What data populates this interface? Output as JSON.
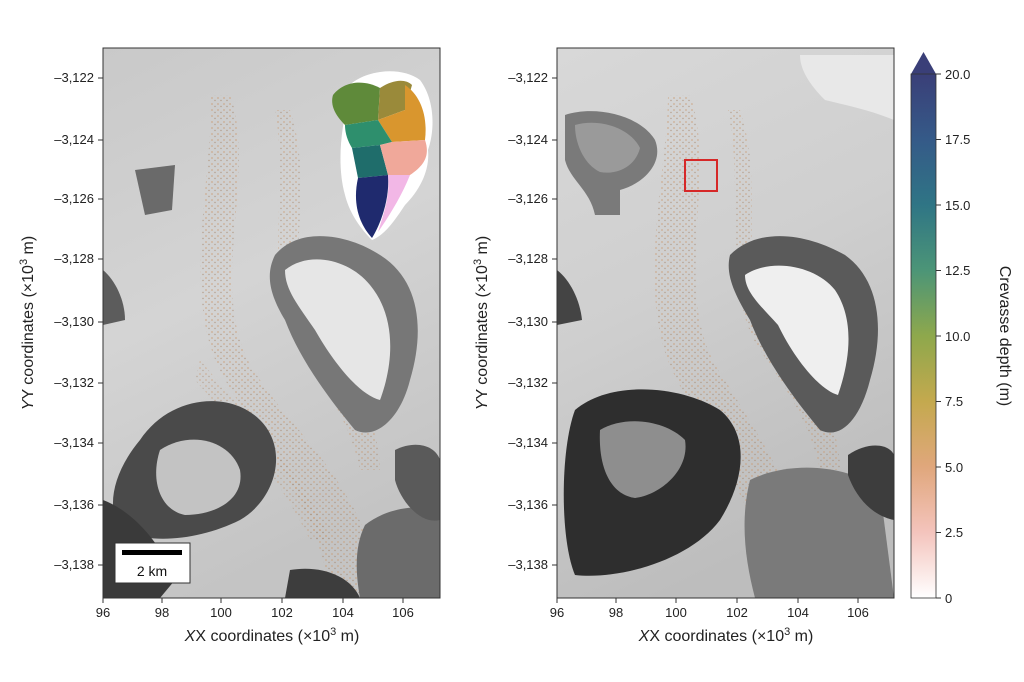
{
  "panels": [
    {
      "id": "left",
      "x_label": "X coordinates (×10",
      "x_label_exp": "3",
      "x_label_tail": " m)",
      "y_label": "Y coordinates (×10",
      "y_label_exp": "3",
      "y_label_tail": " m)",
      "x_ticks": [
        "96",
        "98",
        "100",
        "102",
        "104",
        "106"
      ],
      "y_ticks": [
        "–3,122",
        "–3,124",
        "–3,126",
        "–3,128",
        "–3,130",
        "–3,132",
        "–3,134",
        "–3,136",
        "–3,138"
      ],
      "scale_bar_label": "2 km",
      "inset": "greenland-basins-map"
    },
    {
      "id": "right",
      "x_label": "X coordinates (×10",
      "x_label_exp": "3",
      "x_label_tail": " m)",
      "y_label": "Y coordinates (×10",
      "y_label_exp": "3",
      "y_label_tail": " m)",
      "x_ticks": [
        "96",
        "98",
        "100",
        "102",
        "104",
        "106"
      ],
      "y_ticks": [
        "–3,122",
        "–3,124",
        "–3,126",
        "–3,128",
        "–3,130",
        "–3,132",
        "–3,134",
        "–3,136",
        "–3,138"
      ],
      "highlight_box_color": "#d62828"
    }
  ],
  "colorbar": {
    "label": "Crevasse depth (m)",
    "ticks": [
      "20.0",
      "17.5",
      "15.0",
      "12.5",
      "10.0",
      "7.5",
      "5.0",
      "2.5",
      "0"
    ],
    "range": [
      0,
      20
    ],
    "extend": "max",
    "colors": [
      "#ffffff",
      "#f4c4bd",
      "#e0a77c",
      "#c4a94e",
      "#8ea84c",
      "#4c9577",
      "#2f7585",
      "#355a88",
      "#3a3f78"
    ]
  },
  "inset_colors": [
    "#5f8a3a",
    "#9a8a3a",
    "#d9962e",
    "#2e8f6d",
    "#1f6d6b",
    "#f0a89a",
    "#1f2a6e",
    "#f2b7e6"
  ]
}
